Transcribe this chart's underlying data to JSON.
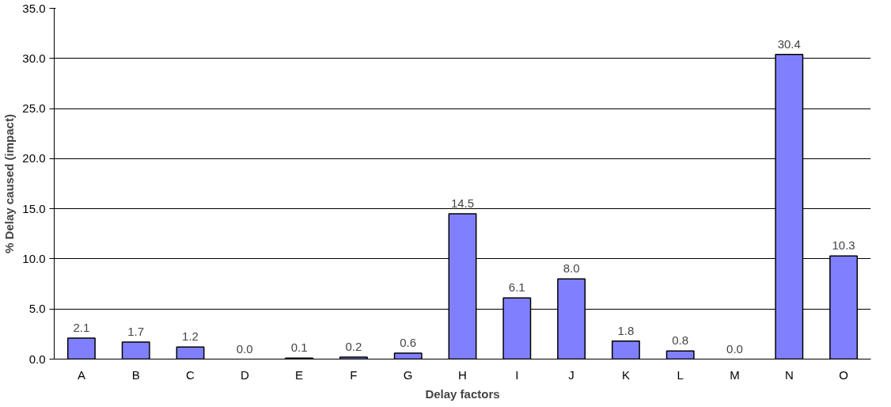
{
  "chart_data": {
    "type": "bar",
    "xlabel": "Delay factors",
    "ylabel": "% Delay caused (impact)",
    "categories": [
      "A",
      "B",
      "C",
      "D",
      "E",
      "F",
      "G",
      "H",
      "I",
      "J",
      "K",
      "L",
      "M",
      "N",
      "O"
    ],
    "values": [
      2.1,
      1.7,
      1.2,
      0.0,
      0.1,
      0.2,
      0.6,
      14.5,
      6.1,
      8.0,
      1.8,
      0.8,
      0.0,
      30.4,
      10.3
    ],
    "value_labels": [
      "2.1",
      "1.7",
      "1.2",
      "0.0",
      "0.1",
      "0.2",
      "0.6",
      "14.5",
      "6.1",
      "8.0",
      "1.8",
      "0.8",
      "0.0",
      "30.4",
      "10.3"
    ],
    "color": "#8080ff",
    "ylim": [
      0,
      35
    ],
    "yticks": [
      {
        "value": 0,
        "label": "0.0"
      },
      {
        "value": 5,
        "label": "5.0"
      },
      {
        "value": 10,
        "label": "10.0"
      },
      {
        "value": 15,
        "label": "15.0"
      },
      {
        "value": 20,
        "label": "20.0"
      },
      {
        "value": 25,
        "label": "25.0"
      },
      {
        "value": 30,
        "label": "30.0"
      },
      {
        "value": 35,
        "label": "35.0"
      }
    ],
    "grid": "y"
  }
}
